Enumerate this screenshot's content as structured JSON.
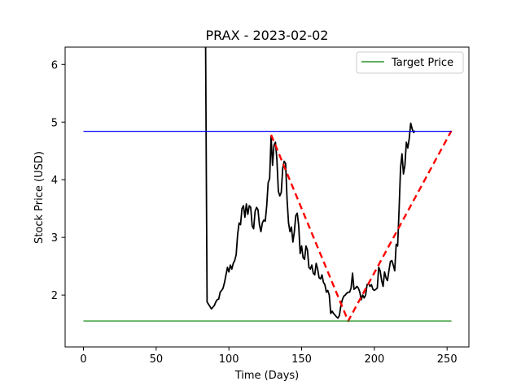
{
  "chart_data": {
    "type": "line",
    "title": "PRAX - 2023-02-02",
    "xlabel": "Time (Days)",
    "ylabel": "Stock Price (USD)",
    "xlim": [
      -12.6,
      265
    ],
    "ylim": [
      1.1,
      6.3
    ],
    "xticks": [
      0,
      50,
      100,
      150,
      200,
      250
    ],
    "yticks": [
      2,
      3,
      4,
      5,
      6
    ],
    "legend": {
      "placement": "top-right",
      "entries": [
        {
          "label": "Target Price",
          "color": "#008000"
        }
      ]
    },
    "series": [
      {
        "style": "black-line",
        "color": "#000000",
        "points": [
          [
            84,
            6.3
          ],
          [
            84.5,
            4.0
          ],
          [
            85,
            1.88
          ],
          [
            86,
            1.84
          ],
          [
            87,
            1.8
          ],
          [
            88,
            1.76
          ],
          [
            89,
            1.79
          ],
          [
            90,
            1.82
          ],
          [
            91,
            1.88
          ],
          [
            92,
            1.92
          ],
          [
            93,
            1.93
          ],
          [
            94,
            2.05
          ],
          [
            95,
            2.08
          ],
          [
            96,
            2.12
          ],
          [
            97,
            2.22
          ],
          [
            98,
            2.35
          ],
          [
            99,
            2.48
          ],
          [
            100,
            2.4
          ],
          [
            101,
            2.52
          ],
          [
            102,
            2.45
          ],
          [
            103,
            2.55
          ],
          [
            104,
            2.6
          ],
          [
            105,
            2.7
          ],
          [
            106,
            3.05
          ],
          [
            107,
            3.25
          ],
          [
            108,
            3.22
          ],
          [
            109,
            3.5
          ],
          [
            110,
            3.55
          ],
          [
            111,
            3.35
          ],
          [
            112,
            3.58
          ],
          [
            113,
            3.4
          ],
          [
            114,
            3.55
          ],
          [
            115,
            3.52
          ],
          [
            116,
            3.2
          ],
          [
            117,
            3.15
          ],
          [
            118,
            3.45
          ],
          [
            119,
            3.52
          ],
          [
            120,
            3.48
          ],
          [
            121,
            3.22
          ],
          [
            122,
            3.1
          ],
          [
            123,
            3.25
          ],
          [
            124,
            3.3
          ],
          [
            125,
            3.28
          ],
          [
            126,
            3.55
          ],
          [
            127,
            3.95
          ],
          [
            128,
            4.02
          ],
          [
            129,
            4.75
          ],
          [
            130,
            4.25
          ],
          [
            131,
            4.6
          ],
          [
            132,
            4.65
          ],
          [
            133,
            4.35
          ],
          [
            134,
            3.8
          ],
          [
            135,
            3.72
          ],
          [
            136,
            3.78
          ],
          [
            137,
            4.2
          ],
          [
            138,
            4.32
          ],
          [
            139,
            4.28
          ],
          [
            140,
            3.65
          ],
          [
            141,
            3.25
          ],
          [
            142,
            3.1
          ],
          [
            143,
            3.18
          ],
          [
            144,
            2.92
          ],
          [
            145,
            3.1
          ],
          [
            146,
            3.38
          ],
          [
            147,
            3.42
          ],
          [
            148,
            3.2
          ],
          [
            149,
            2.72
          ],
          [
            150,
            2.85
          ],
          [
            151,
            2.65
          ],
          [
            152,
            2.62
          ],
          [
            153,
            2.85
          ],
          [
            154,
            2.78
          ],
          [
            155,
            2.48
          ],
          [
            156,
            2.45
          ],
          [
            157,
            2.52
          ],
          [
            158,
            2.38
          ],
          [
            159,
            2.35
          ],
          [
            160,
            2.55
          ],
          [
            161,
            2.45
          ],
          [
            162,
            2.3
          ],
          [
            163,
            2.28
          ],
          [
            164,
            2.35
          ],
          [
            165,
            2.22
          ],
          [
            166,
            2.18
          ],
          [
            167,
            2.05
          ],
          [
            168,
            2.08
          ],
          [
            169,
            2.0
          ],
          [
            170,
            1.68
          ],
          [
            171,
            1.72
          ],
          [
            172,
            1.68
          ],
          [
            173,
            1.65
          ],
          [
            174,
            1.62
          ],
          [
            175,
            1.6
          ],
          [
            176,
            1.65
          ],
          [
            177,
            1.82
          ],
          [
            178,
            1.92
          ],
          [
            179,
            1.98
          ],
          [
            180,
            2.0
          ],
          [
            181,
            2.03
          ],
          [
            182,
            2.05
          ],
          [
            183,
            2.05
          ],
          [
            184,
            2.12
          ],
          [
            185,
            2.38
          ],
          [
            186,
            2.1
          ],
          [
            187,
            2.12
          ],
          [
            188,
            2.15
          ],
          [
            189,
            2.12
          ],
          [
            190,
            2.05
          ],
          [
            191,
            1.92
          ],
          [
            192,
            2.0
          ],
          [
            193,
            1.95
          ],
          [
            194,
            2.0
          ],
          [
            195,
            2.18
          ],
          [
            196,
            2.2
          ],
          [
            197,
            2.15
          ],
          [
            198,
            2.18
          ],
          [
            199,
            2.1
          ],
          [
            200,
            2.08
          ],
          [
            201,
            2.1
          ],
          [
            202,
            2.12
          ],
          [
            203,
            2.48
          ],
          [
            204,
            2.42
          ],
          [
            205,
            2.25
          ],
          [
            206,
            2.15
          ],
          [
            207,
            2.4
          ],
          [
            208,
            2.3
          ],
          [
            209,
            2.25
          ],
          [
            210,
            2.42
          ],
          [
            211,
            2.58
          ],
          [
            212,
            2.6
          ],
          [
            213,
            2.52
          ],
          [
            214,
            2.42
          ],
          [
            215,
            2.88
          ],
          [
            216,
            2.85
          ],
          [
            217,
            3.48
          ],
          [
            218,
            4.2
          ],
          [
            219,
            4.45
          ],
          [
            220,
            4.1
          ],
          [
            221,
            4.25
          ],
          [
            222,
            4.65
          ],
          [
            223,
            4.55
          ],
          [
            224,
            4.72
          ],
          [
            225,
            4.98
          ],
          [
            226,
            4.88
          ],
          [
            227,
            4.82
          ],
          [
            228,
            4.85
          ]
        ]
      },
      {
        "style": "red-dashed",
        "color": "#ff0000",
        "points": [
          [
            129,
            4.78
          ],
          [
            182,
            1.55
          ],
          [
            253,
            4.85
          ]
        ]
      },
      {
        "style": "blue-line",
        "color": "#0000ff",
        "points": [
          [
            0,
            4.84
          ],
          [
            253,
            4.84
          ]
        ]
      },
      {
        "style": "green-line",
        "name": "Target Price",
        "color": "#008000",
        "points": [
          [
            0,
            1.55
          ],
          [
            253,
            1.55
          ]
        ]
      }
    ]
  }
}
